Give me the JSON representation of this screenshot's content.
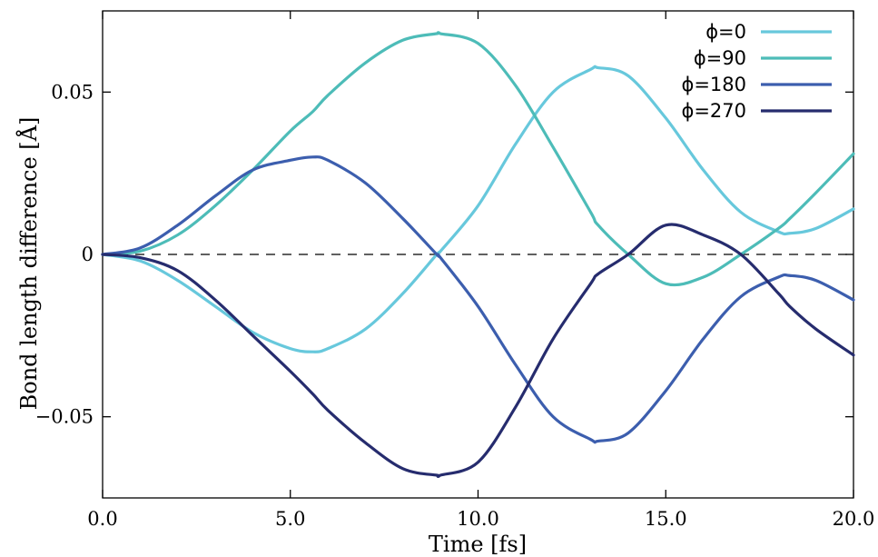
{
  "chart_data": {
    "type": "line",
    "xlabel": "Time [fs]",
    "ylabel": "Bond length difference [Å]",
    "xlim": [
      0,
      20
    ],
    "ylim": [
      -0.075,
      0.075
    ],
    "x_ticks": [
      0,
      5,
      10,
      15,
      20
    ],
    "x_tick_labels": [
      "0.0",
      "5.0",
      "10.0",
      "15.0",
      "20.0"
    ],
    "y_ticks": [
      -0.05,
      0,
      0.05
    ],
    "y_tick_labels": [
      "−0.05",
      "0",
      "0.05"
    ],
    "grid": false,
    "legend_position": "top-right",
    "reference_line": {
      "y": 0,
      "style": "dashed",
      "color": "#000000"
    },
    "x": [
      0,
      1,
      2,
      3,
      4,
      5,
      5.6,
      6,
      7,
      8,
      8.9,
      9,
      10,
      11,
      12,
      13,
      13.2,
      14,
      15,
      16,
      17,
      18,
      18.3,
      19,
      20
    ],
    "series": [
      {
        "name": "ϕ=0",
        "color": "#67c8dc",
        "values": [
          0,
          -0.002,
          -0.008,
          -0.016,
          -0.024,
          -0.029,
          -0.03,
          -0.029,
          -0.023,
          -0.012,
          0,
          0.001,
          0.015,
          0.034,
          0.05,
          0.057,
          0.0575,
          0.055,
          0.042,
          0.026,
          0.013,
          0.007,
          0.0065,
          0.008,
          0.014
        ]
      },
      {
        "name": "ϕ=90",
        "color": "#4dbcb8",
        "values": [
          0,
          0.001,
          0.006,
          0.015,
          0.026,
          0.038,
          0.044,
          0.049,
          0.059,
          0.066,
          0.068,
          0.068,
          0.065,
          0.052,
          0.033,
          0.013,
          0.009,
          0.0,
          -0.009,
          -0.007,
          0.0,
          0.008,
          0.011,
          0.019,
          0.031
        ]
      },
      {
        "name": "ϕ=180",
        "color": "#3c5eae",
        "values": [
          0,
          0.002,
          0.009,
          0.018,
          0.026,
          0.029,
          0.03,
          0.029,
          0.022,
          0.011,
          0,
          -0.001,
          -0.016,
          -0.034,
          -0.05,
          -0.057,
          -0.0575,
          -0.055,
          -0.042,
          -0.026,
          -0.013,
          -0.007,
          -0.0065,
          -0.008,
          -0.014
        ]
      },
      {
        "name": "ϕ=270",
        "color": "#262c6e",
        "values": [
          0,
          -0.001,
          -0.005,
          -0.014,
          -0.025,
          -0.036,
          -0.043,
          -0.048,
          -0.058,
          -0.066,
          -0.068,
          -0.068,
          -0.064,
          -0.047,
          -0.026,
          -0.009,
          -0.006,
          0.0,
          0.009,
          0.006,
          0.0,
          -0.012,
          -0.016,
          -0.023,
          -0.031
        ]
      }
    ]
  }
}
